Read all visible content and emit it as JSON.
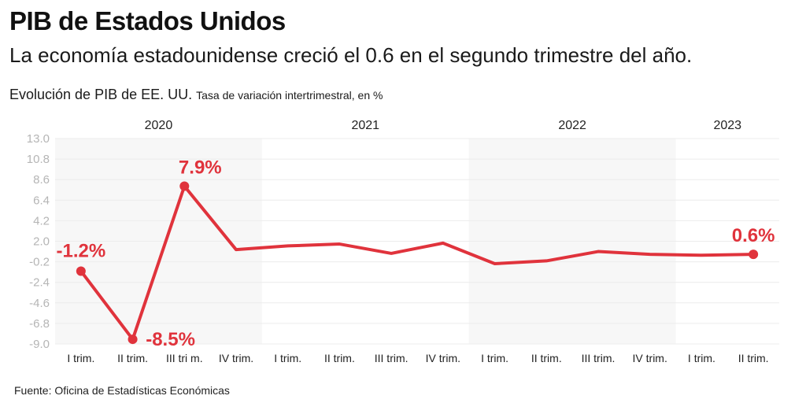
{
  "header": {
    "title": "PIB de Estados Unidos",
    "subtitle": "La economía estadounidense creció el 0.6 en el segundo trimestre del año.",
    "caption_main": "Evolución de PIB de EE. UU.",
    "caption_small": "Tasa de variación intertrimestral, en %"
  },
  "footer": {
    "source": "Fuente: Oficina de Estadísticas Económicas"
  },
  "chart_data": {
    "type": "line",
    "title": "Evolución de PIB de EE. UU.",
    "xlabel": "",
    "ylabel": "Tasa de variación intertrimestral, en %",
    "ylim": [
      -9.0,
      13.0
    ],
    "yticks": [
      "13.0",
      "10.8",
      "8.6",
      "6.4",
      "4.2",
      "2.0",
      "-0.2",
      "-2.4",
      "-4.6",
      "-6.8",
      "-9.0"
    ],
    "grid": true,
    "line_color": "#e0333c",
    "band_color": "#f7f7f7",
    "years": [
      {
        "label": "2020",
        "start": 0,
        "end": 3,
        "shaded": true
      },
      {
        "label": "2021",
        "start": 4,
        "end": 7,
        "shaded": false
      },
      {
        "label": "2022",
        "start": 8,
        "end": 11,
        "shaded": true
      },
      {
        "label": "2023",
        "start": 12,
        "end": 13,
        "shaded": false
      }
    ],
    "categories": [
      "I trim.",
      "II trim.",
      "III tri m.",
      "IV trim.",
      "I trim.",
      "II trim.",
      "III trim.",
      "IV trim.",
      "I trim.",
      "II trim.",
      "III trim.",
      "IV trim.",
      "I trim.",
      "II trim."
    ],
    "series": [
      {
        "name": "PIB",
        "values": [
          -1.2,
          -8.5,
          7.9,
          1.1,
          1.5,
          1.7,
          0.7,
          1.8,
          -0.4,
          -0.1,
          0.9,
          0.6,
          0.5,
          0.6
        ]
      }
    ],
    "annotations": [
      {
        "index": 0,
        "text": "-1.2%"
      },
      {
        "index": 1,
        "text": "-8.5%"
      },
      {
        "index": 2,
        "text": "7.9%"
      },
      {
        "index": 13,
        "text": "0.6%"
      }
    ]
  }
}
